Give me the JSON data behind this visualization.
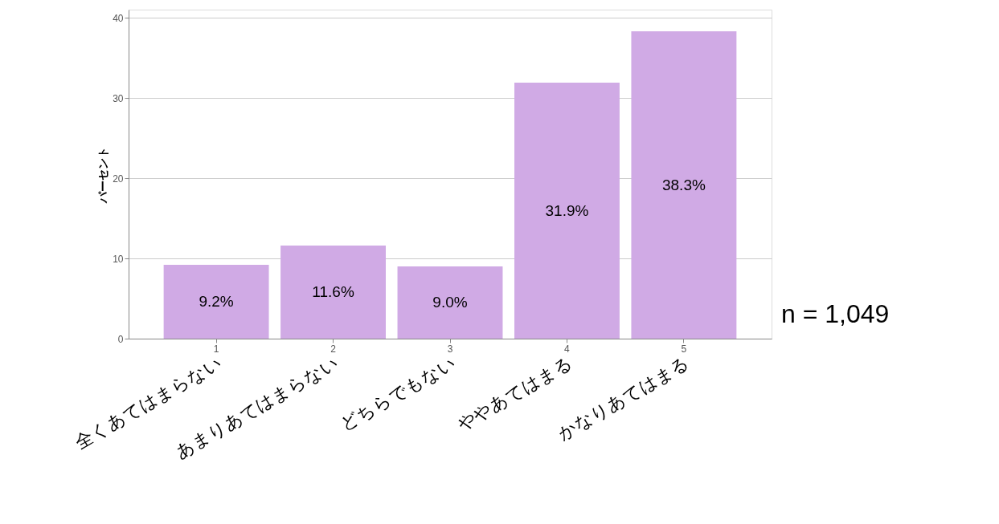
{
  "chart_data": {
    "type": "bar",
    "ylabel": "パーセント",
    "categories": [
      "1",
      "2",
      "3",
      "4",
      "5"
    ],
    "values": [
      9.2,
      11.6,
      9.0,
      31.9,
      38.3
    ],
    "value_labels": [
      "9.2%",
      "11.6%",
      "9.0%",
      "31.9%",
      "38.3%"
    ],
    "color": "#d0aae5",
    "ylim": [
      0,
      41
    ],
    "yticks": [
      0,
      10,
      20,
      30,
      40
    ],
    "grid": "y",
    "annotations": [
      "全くあてはまらない",
      "あまりあてはまらない",
      "どちらでもない",
      "ややあてはまる",
      "かなりあてはまる",
      "n = 1,049"
    ]
  }
}
